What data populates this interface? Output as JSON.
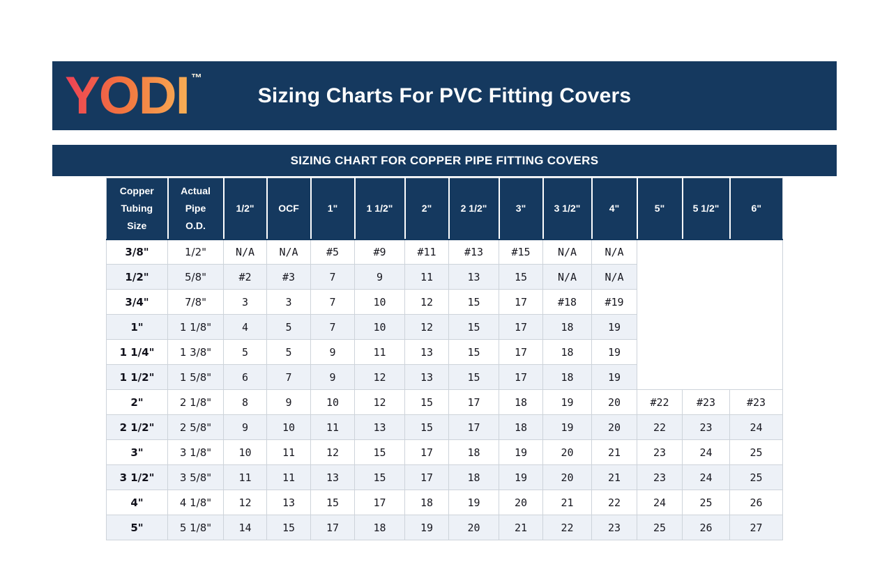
{
  "banner": {
    "logo_text": "YODI",
    "logo_tm": "™",
    "title": "Sizing Charts For PVC Fitting Covers"
  },
  "section_bar": {
    "title": "SIZING CHART FOR COPPER PIPE FITTING COVERS"
  },
  "colors": {
    "navy": "#15395F",
    "logo_gradient_start": "#EE4156",
    "logo_gradient_mid": "#F2753F",
    "logo_gradient_end": "#F8B156",
    "row_stripe": "#EDF1F7",
    "grid_line": "#CDD3DA",
    "header_text": "#FFFFFF"
  },
  "table": {
    "columns": [
      "Copper\nTubing\nSize",
      "Actual\nPipe\nO.D.",
      "1/2\"",
      "OCF",
      "1\"",
      "1 1/2\"",
      "2\"",
      "2 1/2\"",
      "3\"",
      "3 1/2\"",
      "4\"",
      "5\"",
      "5 1/2\"",
      "6\""
    ],
    "rows": [
      [
        "3/8\"",
        "1/2\"",
        "N/A",
        "N/A",
        "#5",
        "#9",
        "#11",
        "#13",
        "#15",
        "N/A",
        "N/A"
      ],
      [
        "1/2\"",
        "5/8\"",
        "#2",
        "#3",
        "7",
        "9",
        "11",
        "13",
        "15",
        "N/A",
        "N/A"
      ],
      [
        "3/4\"",
        "7/8\"",
        "3",
        "3",
        "7",
        "10",
        "12",
        "15",
        "17",
        "#18",
        "#19"
      ],
      [
        "1\"",
        "1 1/8\"",
        "4",
        "5",
        "7",
        "10",
        "12",
        "15",
        "17",
        "18",
        "19"
      ],
      [
        "1 1/4\"",
        "1 3/8\"",
        "5",
        "5",
        "9",
        "11",
        "13",
        "15",
        "17",
        "18",
        "19"
      ],
      [
        "1 1/2\"",
        "1 5/8\"",
        "6",
        "7",
        "9",
        "12",
        "13",
        "15",
        "17",
        "18",
        "19"
      ],
      [
        "2\"",
        "2 1/8\"",
        "8",
        "9",
        "10",
        "12",
        "15",
        "17",
        "18",
        "19",
        "20",
        "#22",
        "#23",
        "#23"
      ],
      [
        "2 1/2\"",
        "2 5/8\"",
        "9",
        "10",
        "11",
        "13",
        "15",
        "17",
        "18",
        "19",
        "20",
        "22",
        "23",
        "24"
      ],
      [
        "3\"",
        "3 1/8\"",
        "10",
        "11",
        "12",
        "15",
        "17",
        "18",
        "19",
        "20",
        "21",
        "23",
        "24",
        "25"
      ],
      [
        "3 1/2\"",
        "3 5/8\"",
        "11",
        "11",
        "13",
        "15",
        "17",
        "18",
        "19",
        "20",
        "21",
        "23",
        "24",
        "25"
      ],
      [
        "4\"",
        "4 1/8\"",
        "12",
        "13",
        "15",
        "17",
        "18",
        "19",
        "20",
        "21",
        "22",
        "24",
        "25",
        "26"
      ],
      [
        "5\"",
        "5 1/8\"",
        "14",
        "15",
        "17",
        "18",
        "19",
        "20",
        "21",
        "22",
        "23",
        "25",
        "26",
        "27"
      ]
    ],
    "empty_region": {
      "row_start": 0,
      "row_count": 6,
      "col_start": 11,
      "col_count": 3
    }
  }
}
